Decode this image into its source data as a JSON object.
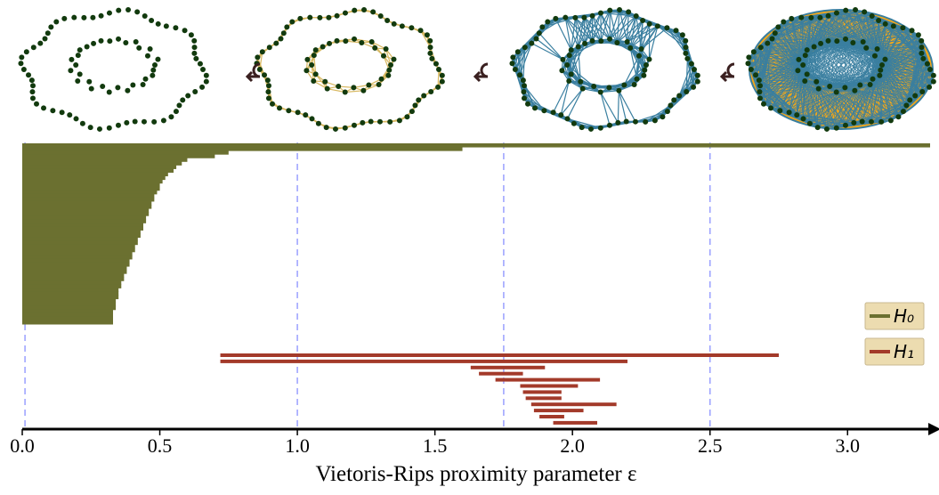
{
  "chart_data": {
    "type": "barcode",
    "xlabel": "Vietoris-Rips proximity parameter ε",
    "xlim": [
      0,
      3.3
    ],
    "xticks": [
      {
        "value": 0,
        "label": "0.0"
      },
      0.5,
      {
        "value": 1,
        "label": "1.0"
      },
      1.5,
      {
        "value": 2,
        "label": "2.0"
      },
      2.5,
      {
        "value": 3,
        "label": "3.0"
      }
    ],
    "vlines": [
      0.01,
      1.0,
      1.75,
      2.5
    ],
    "legend": "right",
    "series": [
      {
        "name": "H₀",
        "color": "#6b7030",
        "births": [
          0,
          0,
          0,
          0,
          0,
          0,
          0,
          0,
          0,
          0,
          0,
          0,
          0,
          0,
          0,
          0,
          0,
          0,
          0,
          0,
          0,
          0,
          0,
          0,
          0,
          0,
          0,
          0,
          0,
          0,
          0,
          0,
          0,
          0,
          0,
          0,
          0,
          0,
          0,
          0,
          0,
          0,
          0,
          0,
          0,
          0,
          0,
          0,
          0,
          0
        ],
        "deaths": [
          3.3,
          1.6,
          0.75,
          0.7,
          0.6,
          0.58,
          0.56,
          0.55,
          0.53,
          0.52,
          0.51,
          0.5,
          0.5,
          0.49,
          0.48,
          0.48,
          0.47,
          0.47,
          0.46,
          0.46,
          0.45,
          0.45,
          0.44,
          0.44,
          0.43,
          0.43,
          0.42,
          0.42,
          0.41,
          0.41,
          0.4,
          0.4,
          0.39,
          0.39,
          0.38,
          0.38,
          0.37,
          0.37,
          0.36,
          0.36,
          0.35,
          0.35,
          0.35,
          0.34,
          0.34,
          0.34,
          0.33,
          0.33,
          0.33,
          0.33
        ]
      },
      {
        "name": "H₁",
        "color": "#a33a2a",
        "births": [
          0.72,
          0.72,
          1.63,
          1.66,
          1.72,
          1.81,
          1.82,
          1.83,
          1.85,
          1.86,
          1.88,
          1.93
        ],
        "deaths": [
          2.75,
          2.2,
          1.9,
          1.82,
          2.1,
          2.02,
          1.96,
          1.96,
          2.16,
          2.04,
          1.97,
          2.09
        ]
      }
    ]
  }
}
